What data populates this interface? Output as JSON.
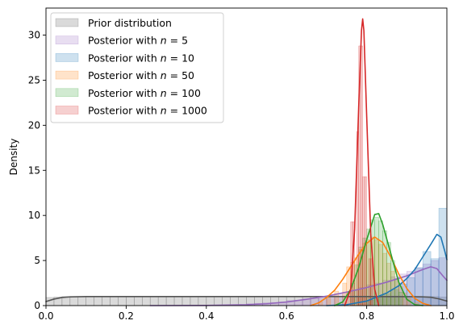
{
  "chart_data": {
    "type": "histogram-kde",
    "ylabel": "Density",
    "xlim": [
      0,
      1
    ],
    "ylim": [
      0,
      33
    ],
    "xticks": [
      0.0,
      0.2,
      0.4,
      0.6,
      0.8,
      1.0
    ],
    "xtick_labels": [
      "0.0",
      "0.2",
      "0.4",
      "0.6",
      "0.8",
      "1.0"
    ],
    "yticks": [
      0,
      5,
      10,
      15,
      20,
      25,
      30
    ],
    "ytick_labels": [
      "0",
      "5",
      "10",
      "15",
      "20",
      "25",
      "30"
    ],
    "grid": false,
    "legend_position": "upper-left",
    "series": [
      {
        "name": "Prior distribution",
        "label_plain": "Prior distribution",
        "label_math": "",
        "color": "#555555",
        "bin_width": 0.02,
        "bins": [
          [
            0.0,
            0.9
          ],
          [
            0.02,
            0.95
          ],
          [
            0.04,
            1.0
          ],
          [
            0.06,
            0.98
          ],
          [
            0.08,
            1.0
          ],
          [
            0.1,
            1.0
          ],
          [
            0.12,
            1.0
          ],
          [
            0.14,
            0.98
          ],
          [
            0.16,
            1.0
          ],
          [
            0.18,
            1.0
          ],
          [
            0.2,
            1.0
          ],
          [
            0.22,
            1.0
          ],
          [
            0.24,
            0.98
          ],
          [
            0.26,
            1.0
          ],
          [
            0.28,
            1.0
          ],
          [
            0.3,
            1.0
          ],
          [
            0.32,
            1.0
          ],
          [
            0.34,
            1.0
          ],
          [
            0.36,
            1.0
          ],
          [
            0.38,
            0.98
          ],
          [
            0.4,
            1.0
          ],
          [
            0.42,
            1.0
          ],
          [
            0.44,
            1.0
          ],
          [
            0.46,
            1.0
          ],
          [
            0.48,
            1.0
          ],
          [
            0.5,
            1.0
          ],
          [
            0.52,
            0.98
          ],
          [
            0.54,
            1.0
          ],
          [
            0.56,
            1.0
          ],
          [
            0.58,
            1.0
          ],
          [
            0.6,
            1.0
          ],
          [
            0.62,
            1.0
          ],
          [
            0.64,
            1.0
          ],
          [
            0.66,
            0.98
          ],
          [
            0.68,
            1.0
          ],
          [
            0.7,
            1.0
          ],
          [
            0.72,
            1.0
          ],
          [
            0.74,
            1.0
          ],
          [
            0.76,
            1.0
          ],
          [
            0.78,
            1.0
          ],
          [
            0.8,
            0.98
          ],
          [
            0.82,
            1.0
          ],
          [
            0.84,
            1.0
          ],
          [
            0.86,
            1.0
          ],
          [
            0.88,
            1.0
          ],
          [
            0.9,
            1.0
          ],
          [
            0.92,
            0.98
          ],
          [
            0.94,
            1.0
          ],
          [
            0.96,
            1.0
          ],
          [
            0.98,
            0.95
          ]
        ],
        "kde": [
          [
            0.0,
            0.45
          ],
          [
            0.02,
            0.72
          ],
          [
            0.04,
            0.9
          ],
          [
            0.06,
            0.97
          ],
          [
            0.1,
            1.0
          ],
          [
            0.2,
            1.0
          ],
          [
            0.3,
            1.0
          ],
          [
            0.4,
            1.0
          ],
          [
            0.5,
            1.0
          ],
          [
            0.6,
            1.0
          ],
          [
            0.7,
            1.0
          ],
          [
            0.8,
            1.0
          ],
          [
            0.9,
            0.99
          ],
          [
            0.94,
            0.97
          ],
          [
            0.96,
            0.92
          ],
          [
            0.98,
            0.75
          ],
          [
            1.0,
            0.5
          ]
        ]
      },
      {
        "name": "Posterior with n = 5",
        "label_plain": "Posterior with ",
        "label_math": "n = 5",
        "color": "#9467bd",
        "bin_width": 0.02,
        "bins": [
          [
            0.5,
            0.2
          ],
          [
            0.52,
            0.25
          ],
          [
            0.54,
            0.3
          ],
          [
            0.56,
            0.35
          ],
          [
            0.58,
            0.4
          ],
          [
            0.6,
            0.55
          ],
          [
            0.62,
            0.6
          ],
          [
            0.64,
            0.75
          ],
          [
            0.66,
            0.8
          ],
          [
            0.68,
            1.0
          ],
          [
            0.7,
            1.1
          ],
          [
            0.72,
            1.3
          ],
          [
            0.74,
            1.5
          ],
          [
            0.76,
            1.7
          ],
          [
            0.78,
            2.0
          ],
          [
            0.8,
            2.3
          ],
          [
            0.82,
            2.5
          ],
          [
            0.84,
            2.8
          ],
          [
            0.86,
            3.2
          ],
          [
            0.88,
            3.5
          ],
          [
            0.9,
            3.8
          ],
          [
            0.92,
            4.2
          ],
          [
            0.94,
            4.6
          ],
          [
            0.96,
            5.0
          ],
          [
            0.98,
            5.3
          ]
        ],
        "kde": [
          [
            0.26,
            0.0
          ],
          [
            0.4,
            0.02
          ],
          [
            0.5,
            0.1
          ],
          [
            0.55,
            0.2
          ],
          [
            0.6,
            0.4
          ],
          [
            0.65,
            0.7
          ],
          [
            0.7,
            1.05
          ],
          [
            0.75,
            1.5
          ],
          [
            0.8,
            2.0
          ],
          [
            0.85,
            2.6
          ],
          [
            0.9,
            3.3
          ],
          [
            0.94,
            4.0
          ],
          [
            0.96,
            4.3
          ],
          [
            0.975,
            4.1
          ],
          [
            0.99,
            3.3
          ],
          [
            1.0,
            2.8
          ]
        ]
      },
      {
        "name": "Posterior with n = 10",
        "label_plain": "Posterior with ",
        "label_math": "n = 10",
        "color": "#1f77b4",
        "bin_width": 0.02,
        "bins": [
          [
            0.8,
            0.6
          ],
          [
            0.82,
            0.9
          ],
          [
            0.84,
            1.3
          ],
          [
            0.86,
            1.8
          ],
          [
            0.88,
            2.4
          ],
          [
            0.9,
            3.1
          ],
          [
            0.92,
            4.2
          ],
          [
            0.94,
            6.0
          ],
          [
            0.96,
            5.2
          ],
          [
            0.98,
            10.8
          ]
        ],
        "kde": [
          [
            0.7,
            0.0
          ],
          [
            0.75,
            0.1
          ],
          [
            0.8,
            0.5
          ],
          [
            0.85,
            1.4
          ],
          [
            0.88,
            2.2
          ],
          [
            0.9,
            3.0
          ],
          [
            0.92,
            4.0
          ],
          [
            0.94,
            5.4
          ],
          [
            0.96,
            6.8
          ],
          [
            0.975,
            7.9
          ],
          [
            0.985,
            7.6
          ],
          [
            0.995,
            6.0
          ],
          [
            1.0,
            5.1
          ]
        ]
      },
      {
        "name": "Posterior with n = 50",
        "label_plain": "Posterior with ",
        "label_math": "n = 50",
        "color": "#ff7f0e",
        "bin_width": 0.01,
        "bins": [
          [
            0.68,
            0.4
          ],
          [
            0.7,
            0.9
          ],
          [
            0.72,
            1.6
          ],
          [
            0.74,
            2.5
          ],
          [
            0.75,
            4.3
          ],
          [
            0.76,
            4.8
          ],
          [
            0.77,
            5.3
          ],
          [
            0.78,
            6.2
          ],
          [
            0.79,
            6.9
          ],
          [
            0.8,
            7.3
          ],
          [
            0.81,
            7.6
          ],
          [
            0.82,
            7.3
          ],
          [
            0.83,
            6.8
          ],
          [
            0.84,
            5.8
          ],
          [
            0.85,
            4.7
          ],
          [
            0.86,
            3.8
          ],
          [
            0.87,
            2.9
          ],
          [
            0.88,
            2.1
          ],
          [
            0.89,
            1.4
          ],
          [
            0.9,
            0.8
          ],
          [
            0.92,
            0.3
          ]
        ],
        "kde": [
          [
            0.66,
            0.0
          ],
          [
            0.68,
            0.3
          ],
          [
            0.7,
            0.9
          ],
          [
            0.72,
            1.7
          ],
          [
            0.74,
            2.9
          ],
          [
            0.76,
            4.3
          ],
          [
            0.78,
            5.7
          ],
          [
            0.8,
            6.9
          ],
          [
            0.82,
            7.6
          ],
          [
            0.84,
            7.0
          ],
          [
            0.86,
            5.4
          ],
          [
            0.88,
            3.5
          ],
          [
            0.9,
            1.9
          ],
          [
            0.92,
            0.8
          ],
          [
            0.94,
            0.25
          ],
          [
            0.96,
            0.0
          ]
        ]
      },
      {
        "name": "Posterior with n = 100",
        "label_plain": "Posterior with ",
        "label_math": "n = 100",
        "color": "#2ca02c",
        "bin_width": 0.01,
        "bins": [
          [
            0.76,
            2.5
          ],
          [
            0.77,
            4.5
          ],
          [
            0.78,
            6.5
          ],
          [
            0.79,
            7.5
          ],
          [
            0.8,
            8.5
          ],
          [
            0.81,
            9.5
          ],
          [
            0.82,
            9.8
          ],
          [
            0.83,
            9.4
          ],
          [
            0.84,
            8.3
          ],
          [
            0.85,
            7.0
          ],
          [
            0.86,
            5.0
          ],
          [
            0.87,
            3.0
          ],
          [
            0.88,
            1.5
          ]
        ],
        "kde": [
          [
            0.72,
            0.0
          ],
          [
            0.74,
            0.4
          ],
          [
            0.76,
            1.8
          ],
          [
            0.78,
            4.2
          ],
          [
            0.8,
            7.3
          ],
          [
            0.82,
            10.1
          ],
          [
            0.83,
            10.2
          ],
          [
            0.84,
            9.0
          ],
          [
            0.86,
            5.8
          ],
          [
            0.88,
            2.6
          ],
          [
            0.9,
            0.7
          ],
          [
            0.92,
            0.1
          ],
          [
            0.94,
            0.0
          ]
        ]
      },
      {
        "name": "Posterior with n = 1000",
        "label_plain": "Posterior with ",
        "label_math": "n = 1000",
        "color": "#d62728",
        "bin_width": 0.005,
        "bins": [
          [
            0.76,
            9.3
          ],
          [
            0.765,
            9.3
          ],
          [
            0.775,
            19.3
          ],
          [
            0.78,
            28.8
          ],
          [
            0.785,
            28.8
          ],
          [
            0.79,
            14.3
          ],
          [
            0.795,
            14.3
          ],
          [
            0.805,
            5.2
          ],
          [
            0.81,
            5.2
          ]
        ],
        "kde": [
          [
            0.745,
            0.0
          ],
          [
            0.76,
            1.8
          ],
          [
            0.77,
            8.5
          ],
          [
            0.78,
            22.0
          ],
          [
            0.787,
            30.5
          ],
          [
            0.79,
            31.8
          ],
          [
            0.793,
            30.5
          ],
          [
            0.8,
            21.0
          ],
          [
            0.81,
            8.0
          ],
          [
            0.82,
            1.8
          ],
          [
            0.83,
            0.0
          ]
        ]
      }
    ]
  }
}
